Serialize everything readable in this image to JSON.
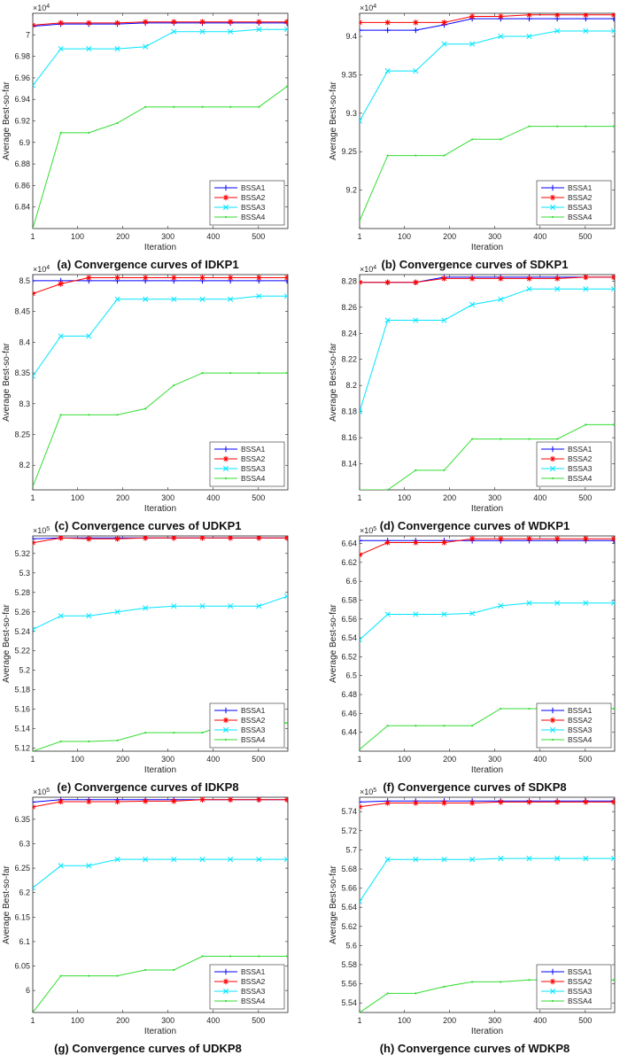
{
  "figure": {
    "legend_labels": [
      "BSSA1",
      "BSSA2",
      "BSSA3",
      "BSSA4"
    ],
    "series_colors": [
      "#0000ff",
      "#ff0000",
      "#00e5ff",
      "#33dd33"
    ],
    "marker_types": [
      "plus",
      "asterisk",
      "cross",
      "dot"
    ]
  },
  "chart_data": [
    {
      "type": "line",
      "caption": "(a) Convergence curves of IDKP1",
      "xlabel": "Iteration",
      "ylabel": "Average Best-so-far",
      "exponent_label": "×10",
      "exponent": "4",
      "xlim": [
        1,
        565
      ],
      "xticks": [
        1,
        100,
        200,
        300,
        400,
        500
      ],
      "ylim": [
        6.82,
        7.02
      ],
      "yticks": [
        6.84,
        6.86,
        6.88,
        6.9,
        6.92,
        6.94,
        6.96,
        6.98,
        7
      ],
      "legend": "bottom-right",
      "x": [
        1,
        63,
        125,
        188,
        250,
        313,
        376,
        438,
        501,
        563
      ],
      "series": [
        {
          "name": "BSSA1",
          "values": [
            7.008,
            7.01,
            7.01,
            7.01,
            7.011,
            7.011,
            7.011,
            7.011,
            7.011,
            7.011
          ]
        },
        {
          "name": "BSSA2",
          "values": [
            7.009,
            7.011,
            7.011,
            7.011,
            7.012,
            7.012,
            7.012,
            7.012,
            7.012,
            7.012
          ]
        },
        {
          "name": "BSSA3",
          "values": [
            6.953,
            6.987,
            6.987,
            6.987,
            6.989,
            7.003,
            7.003,
            7.003,
            7.005,
            7.005
          ]
        },
        {
          "name": "BSSA4",
          "values": [
            6.82,
            6.909,
            6.909,
            6.918,
            6.933,
            6.933,
            6.933,
            6.933,
            6.933,
            6.952
          ]
        }
      ]
    },
    {
      "type": "line",
      "caption": "(b) Convergence curves of SDKP1",
      "xlabel": "Iteration",
      "ylabel": "Average Best-so-far",
      "exponent_label": "×10",
      "exponent": "4",
      "xlim": [
        1,
        565
      ],
      "xticks": [
        1,
        100,
        200,
        300,
        400,
        500
      ],
      "ylim": [
        9.15,
        9.43
      ],
      "yticks": [
        9.2,
        9.25,
        9.3,
        9.35,
        9.4
      ],
      "legend": "bottom-right",
      "x": [
        1,
        63,
        125,
        188,
        250,
        313,
        376,
        438,
        501,
        563
      ],
      "series": [
        {
          "name": "BSSA1",
          "values": [
            9.408,
            9.408,
            9.408,
            9.415,
            9.423,
            9.423,
            9.423,
            9.423,
            9.423,
            9.423
          ]
        },
        {
          "name": "BSSA2",
          "values": [
            9.418,
            9.418,
            9.418,
            9.418,
            9.426,
            9.426,
            9.428,
            9.428,
            9.428,
            9.428
          ]
        },
        {
          "name": "BSSA3",
          "values": [
            9.29,
            9.355,
            9.355,
            9.39,
            9.39,
            9.4,
            9.4,
            9.407,
            9.407,
            9.407
          ]
        },
        {
          "name": "BSSA4",
          "values": [
            9.16,
            9.245,
            9.245,
            9.245,
            9.266,
            9.266,
            9.283,
            9.283,
            9.283,
            9.283
          ]
        }
      ]
    },
    {
      "type": "line",
      "caption": "(c) Convergence curves of UDKP1",
      "xlabel": "Iteration",
      "ylabel": "Average Best-so-far",
      "exponent_label": "×10",
      "exponent": "4",
      "xlim": [
        1,
        565
      ],
      "xticks": [
        1,
        100,
        200,
        300,
        400,
        500
      ],
      "ylim": [
        8.16,
        8.51
      ],
      "yticks": [
        8.2,
        8.25,
        8.3,
        8.35,
        8.4,
        8.45,
        8.5
      ],
      "legend": "bottom-right",
      "x": [
        1,
        63,
        125,
        188,
        250,
        313,
        376,
        438,
        501,
        563
      ],
      "series": [
        {
          "name": "BSSA1",
          "values": [
            8.5,
            8.5,
            8.5,
            8.5,
            8.5,
            8.5,
            8.5,
            8.5,
            8.5,
            8.5
          ]
        },
        {
          "name": "BSSA2",
          "values": [
            8.479,
            8.495,
            8.505,
            8.505,
            8.505,
            8.505,
            8.505,
            8.505,
            8.505,
            8.505
          ]
        },
        {
          "name": "BSSA3",
          "values": [
            8.345,
            8.41,
            8.41,
            8.47,
            8.47,
            8.47,
            8.47,
            8.47,
            8.475,
            8.475
          ]
        },
        {
          "name": "BSSA4",
          "values": [
            8.165,
            8.282,
            8.282,
            8.282,
            8.292,
            8.33,
            8.35,
            8.35,
            8.35,
            8.35
          ]
        }
      ]
    },
    {
      "type": "line",
      "caption": "(d) Convergence curves of WDKP1",
      "xlabel": "Iteration",
      "ylabel": "Average Best-so-far",
      "exponent_label": "×10",
      "exponent": "4",
      "xlim": [
        1,
        565
      ],
      "xticks": [
        1,
        100,
        200,
        300,
        400,
        500
      ],
      "ylim": [
        8.12,
        8.285
      ],
      "yticks": [
        8.14,
        8.16,
        8.18,
        8.2,
        8.22,
        8.24,
        8.26,
        8.28
      ],
      "legend": "bottom-right",
      "x": [
        1,
        63,
        125,
        188,
        250,
        313,
        376,
        438,
        501,
        563
      ],
      "series": [
        {
          "name": "BSSA1",
          "values": [
            8.279,
            8.279,
            8.279,
            8.283,
            8.283,
            8.283,
            8.283,
            8.283,
            8.283,
            8.283
          ]
        },
        {
          "name": "BSSA2",
          "values": [
            8.279,
            8.279,
            8.279,
            8.282,
            8.282,
            8.282,
            8.282,
            8.282,
            8.283,
            8.283
          ]
        },
        {
          "name": "BSSA3",
          "values": [
            8.18,
            8.25,
            8.25,
            8.25,
            8.262,
            8.266,
            8.274,
            8.274,
            8.274,
            8.274
          ]
        },
        {
          "name": "BSSA4",
          "values": [
            8.12,
            8.12,
            8.135,
            8.135,
            8.159,
            8.159,
            8.159,
            8.159,
            8.17,
            8.17
          ]
        }
      ]
    },
    {
      "type": "line",
      "caption": "(e) Convergence curves of IDKP8",
      "xlabel": "Iteration",
      "ylabel": "Average Best-so-far",
      "exponent_label": "×10",
      "exponent": "5",
      "xlim": [
        1,
        565
      ],
      "xticks": [
        1,
        100,
        200,
        300,
        400,
        500
      ],
      "ylim": [
        5.117,
        5.338
      ],
      "yticks": [
        5.12,
        5.14,
        5.16,
        5.18,
        5.2,
        5.22,
        5.24,
        5.26,
        5.28,
        5.3,
        5.32
      ],
      "legend": "bottom-right",
      "x": [
        1,
        63,
        125,
        188,
        250,
        313,
        376,
        438,
        501,
        563
      ],
      "series": [
        {
          "name": "BSSA1",
          "values": [
            5.335,
            5.336,
            5.336,
            5.336,
            5.336,
            5.336,
            5.336,
            5.336,
            5.336,
            5.336
          ]
        },
        {
          "name": "BSSA2",
          "values": [
            5.331,
            5.336,
            5.335,
            5.335,
            5.336,
            5.336,
            5.336,
            5.336,
            5.336,
            5.336
          ]
        },
        {
          "name": "BSSA3",
          "values": [
            5.242,
            5.256,
            5.256,
            5.26,
            5.264,
            5.266,
            5.266,
            5.266,
            5.266,
            5.276
          ]
        },
        {
          "name": "BSSA4",
          "values": [
            5.117,
            5.127,
            5.127,
            5.128,
            5.136,
            5.136,
            5.136,
            5.146,
            5.146,
            5.146
          ]
        }
      ]
    },
    {
      "type": "line",
      "caption": "(f) Convergence curves of SDKP8",
      "xlabel": "Iteration",
      "ylabel": "Average Best-so-far",
      "exponent_label": "×10",
      "exponent": "5",
      "xlim": [
        1,
        565
      ],
      "xticks": [
        1,
        100,
        200,
        300,
        400,
        500
      ],
      "ylim": [
        6.42,
        6.648
      ],
      "yticks": [
        6.44,
        6.46,
        6.48,
        6.5,
        6.52,
        6.54,
        6.56,
        6.58,
        6.6,
        6.62,
        6.64
      ],
      "legend": "bottom-right",
      "x": [
        1,
        63,
        125,
        188,
        250,
        313,
        376,
        438,
        501,
        563
      ],
      "series": [
        {
          "name": "BSSA1",
          "values": [
            6.643,
            6.643,
            6.643,
            6.643,
            6.643,
            6.643,
            6.643,
            6.643,
            6.643,
            6.643
          ]
        },
        {
          "name": "BSSA2",
          "values": [
            6.628,
            6.641,
            6.641,
            6.641,
            6.645,
            6.645,
            6.645,
            6.645,
            6.645,
            6.645
          ]
        },
        {
          "name": "BSSA3",
          "values": [
            6.538,
            6.565,
            6.565,
            6.565,
            6.566,
            6.574,
            6.577,
            6.577,
            6.577,
            6.577
          ]
        },
        {
          "name": "BSSA4",
          "values": [
            6.422,
            6.447,
            6.447,
            6.447,
            6.447,
            6.465,
            6.465,
            6.465,
            6.465,
            6.465
          ]
        }
      ]
    },
    {
      "type": "line",
      "caption": "(g) Convergence curves of UDKP8",
      "xlabel": "Iteration",
      "ylabel": "Average Best-so-far",
      "exponent_label": "×10",
      "exponent": "5",
      "xlim": [
        1,
        565
      ],
      "xticks": [
        1,
        100,
        200,
        300,
        400,
        500
      ],
      "ylim": [
        5.955,
        6.395
      ],
      "yticks": [
        6,
        6.05,
        6.1,
        6.15,
        6.2,
        6.25,
        6.3,
        6.35
      ],
      "legend": "bottom-right",
      "x": [
        1,
        63,
        125,
        188,
        250,
        313,
        376,
        438,
        501,
        563
      ],
      "series": [
        {
          "name": "BSSA1",
          "values": [
            6.385,
            6.39,
            6.39,
            6.39,
            6.39,
            6.39,
            6.39,
            6.39,
            6.39,
            6.39
          ]
        },
        {
          "name": "BSSA2",
          "values": [
            6.375,
            6.386,
            6.386,
            6.386,
            6.387,
            6.387,
            6.39,
            6.39,
            6.39,
            6.39
          ]
        },
        {
          "name": "BSSA3",
          "values": [
            6.21,
            6.255,
            6.255,
            6.268,
            6.268,
            6.268,
            6.268,
            6.268,
            6.268,
            6.268
          ]
        },
        {
          "name": "BSSA4",
          "values": [
            5.955,
            6.03,
            6.03,
            6.03,
            6.042,
            6.042,
            6.07,
            6.07,
            6.07,
            6.07
          ]
        }
      ]
    },
    {
      "type": "line",
      "caption": "(h) Convergence curves of WDKP8",
      "xlabel": "Iteration",
      "ylabel": "Average Best-so-far",
      "exponent_label": "×10",
      "exponent": "5",
      "xlim": [
        1,
        565
      ],
      "xticks": [
        1,
        100,
        200,
        300,
        400,
        500
      ],
      "ylim": [
        5.53,
        5.755
      ],
      "yticks": [
        5.54,
        5.56,
        5.58,
        5.6,
        5.62,
        5.64,
        5.66,
        5.68,
        5.7,
        5.72,
        5.74
      ],
      "legend": "bottom-right",
      "x": [
        1,
        63,
        125,
        188,
        250,
        313,
        376,
        438,
        501,
        563
      ],
      "series": [
        {
          "name": "BSSA1",
          "values": [
            5.75,
            5.751,
            5.751,
            5.751,
            5.751,
            5.751,
            5.751,
            5.751,
            5.751,
            5.751
          ]
        },
        {
          "name": "BSSA2",
          "values": [
            5.745,
            5.749,
            5.749,
            5.749,
            5.749,
            5.75,
            5.75,
            5.75,
            5.75,
            5.75
          ]
        },
        {
          "name": "BSSA3",
          "values": [
            5.646,
            5.69,
            5.69,
            5.69,
            5.69,
            5.691,
            5.691,
            5.691,
            5.691,
            5.691
          ]
        },
        {
          "name": "BSSA4",
          "values": [
            5.53,
            5.55,
            5.55,
            5.557,
            5.562,
            5.562,
            5.564,
            5.564,
            5.564,
            5.564
          ]
        }
      ]
    }
  ]
}
